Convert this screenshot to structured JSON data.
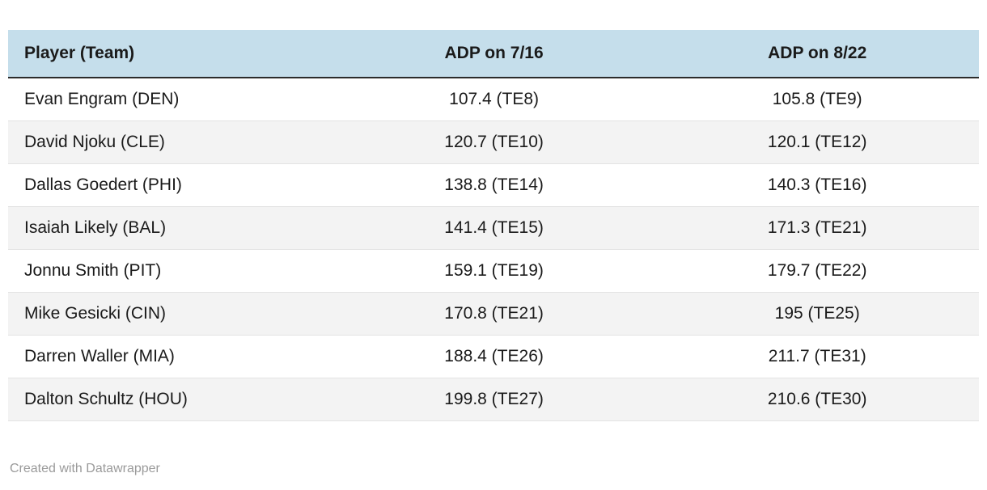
{
  "chart_data": {
    "type": "table",
    "columns": [
      "Player (Team)",
      "ADP on 7/16",
      "ADP on 8/22"
    ],
    "rows": [
      [
        "Evan Engram (DEN)",
        "107.4 (TE8)",
        "105.8 (TE9)"
      ],
      [
        "David Njoku (CLE)",
        "120.7 (TE10)",
        "120.1 (TE12)"
      ],
      [
        "Dallas Goedert (PHI)",
        "138.8 (TE14)",
        "140.3 (TE16)"
      ],
      [
        "Isaiah Likely (BAL)",
        "141.4 (TE15)",
        "171.3 (TE21)"
      ],
      [
        "Jonnu Smith (PIT)",
        "159.1 (TE19)",
        "179.7 (TE22)"
      ],
      [
        "Mike Gesicki (CIN)",
        "170.8 (TE21)",
        "195 (TE25)"
      ],
      [
        "Darren Waller (MIA)",
        "188.4 (TE26)",
        "211.7 (TE31)"
      ],
      [
        "Dalton Schultz (HOU)",
        "199.8 (TE27)",
        "210.6 (TE30)"
      ]
    ],
    "title": "",
    "legend_position": "none",
    "grid": "row-stripes"
  },
  "footer": {
    "credit": "Created with Datawrapper"
  },
  "colors": {
    "header_bg": "#c5deeb",
    "alt_row_bg": "#f3f3f3",
    "row_border": "#e3e3e3",
    "header_border": "#2b2b2b",
    "text_color": "#1a1a1a",
    "credit_color": "#9a9a9a"
  }
}
